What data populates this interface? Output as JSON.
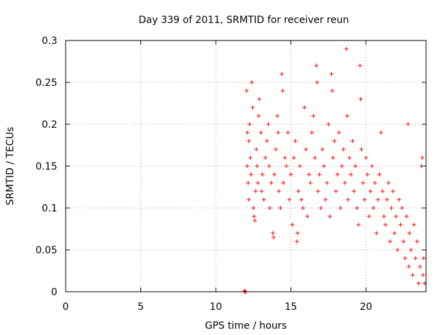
{
  "chart_data": {
    "type": "scatter",
    "title": "Day 339 of 2011, SRMTID for receiver reun",
    "xlabel": "GPS time / hours",
    "ylabel": "SRMTID / TECUs",
    "xlim": [
      0,
      24
    ],
    "ylim": [
      0,
      0.3
    ],
    "xticks": [
      0,
      5,
      10,
      15,
      20
    ],
    "xtick_labels": [
      "0",
      "5",
      "10",
      "15",
      "20"
    ],
    "yticks": [
      0,
      0.05,
      0.1,
      0.15,
      0.2,
      0.25,
      0.3
    ],
    "ytick_labels": [
      "0",
      "0.05",
      "0.1",
      "0.15",
      "0.2",
      "0.25",
      "0.3"
    ],
    "grid": true,
    "marker": "+",
    "color": "#ff0000",
    "series": [
      {
        "name": "SRMTID",
        "points": [
          [
            11.9,
            0.001
          ],
          [
            11.95,
            0.0
          ],
          [
            12.0,
            0.0
          ],
          [
            12.05,
            0.24
          ],
          [
            12.1,
            0.19
          ],
          [
            12.1,
            0.15
          ],
          [
            12.15,
            0.13
          ],
          [
            12.2,
            0.11
          ],
          [
            12.2,
            0.18
          ],
          [
            12.25,
            0.2
          ],
          [
            12.3,
            0.16
          ],
          [
            12.35,
            0.14
          ],
          [
            12.4,
            0.25
          ],
          [
            12.45,
            0.22
          ],
          [
            12.5,
            0.1
          ],
          [
            12.55,
            0.09
          ],
          [
            12.6,
            0.085
          ],
          [
            12.65,
            0.12
          ],
          [
            12.7,
            0.17
          ],
          [
            12.75,
            0.15
          ],
          [
            12.8,
            0.13
          ],
          [
            12.85,
            0.21
          ],
          [
            12.9,
            0.23
          ],
          [
            13.0,
            0.19
          ],
          [
            13.05,
            0.12
          ],
          [
            13.1,
            0.14
          ],
          [
            13.2,
            0.11
          ],
          [
            13.3,
            0.16
          ],
          [
            13.4,
            0.18
          ],
          [
            13.5,
            0.2
          ],
          [
            13.55,
            0.15
          ],
          [
            13.6,
            0.1
          ],
          [
            13.7,
            0.13
          ],
          [
            13.8,
            0.07
          ],
          [
            13.85,
            0.065
          ],
          [
            13.9,
            0.14
          ],
          [
            14.0,
            0.17
          ],
          [
            14.1,
            0.21
          ],
          [
            14.15,
            0.19
          ],
          [
            14.2,
            0.12
          ],
          [
            14.3,
            0.1
          ],
          [
            14.4,
            0.26
          ],
          [
            14.45,
            0.24
          ],
          [
            14.5,
            0.13
          ],
          [
            14.6,
            0.16
          ],
          [
            14.7,
            0.15
          ],
          [
            14.8,
            0.19
          ],
          [
            14.9,
            0.11
          ],
          [
            15.0,
            0.14
          ],
          [
            15.1,
            0.08
          ],
          [
            15.2,
            0.16
          ],
          [
            15.3,
            0.18
          ],
          [
            15.4,
            0.06
          ],
          [
            15.45,
            0.07
          ],
          [
            15.5,
            0.12
          ],
          [
            15.6,
            0.15
          ],
          [
            15.7,
            0.11
          ],
          [
            15.8,
            0.1
          ],
          [
            15.9,
            0.22
          ],
          [
            16.0,
            0.17
          ],
          [
            16.1,
            0.09
          ],
          [
            16.2,
            0.14
          ],
          [
            16.3,
            0.13
          ],
          [
            16.4,
            0.19
          ],
          [
            16.5,
            0.21
          ],
          [
            16.6,
            0.16
          ],
          [
            16.7,
            0.27
          ],
          [
            16.75,
            0.25
          ],
          [
            16.8,
            0.12
          ],
          [
            16.9,
            0.14
          ],
          [
            17.0,
            0.1
          ],
          [
            17.1,
            0.17
          ],
          [
            17.2,
            0.15
          ],
          [
            17.3,
            0.11
          ],
          [
            17.4,
            0.13
          ],
          [
            17.5,
            0.2
          ],
          [
            17.6,
            0.09
          ],
          [
            17.7,
            0.26
          ],
          [
            17.75,
            0.24
          ],
          [
            17.8,
            0.16
          ],
          [
            17.9,
            0.18
          ],
          [
            18.0,
            0.12
          ],
          [
            18.1,
            0.14
          ],
          [
            18.2,
            0.19
          ],
          [
            18.3,
            0.1
          ],
          [
            18.4,
            0.15
          ],
          [
            18.5,
            0.17
          ],
          [
            18.6,
            0.13
          ],
          [
            18.7,
            0.29
          ],
          [
            18.75,
            0.21
          ],
          [
            18.8,
            0.11
          ],
          [
            18.9,
            0.16
          ],
          [
            19.0,
            0.14
          ],
          [
            19.1,
            0.18
          ],
          [
            19.2,
            0.12
          ],
          [
            19.3,
            0.15
          ],
          [
            19.4,
            0.1
          ],
          [
            19.5,
            0.08
          ],
          [
            19.6,
            0.27
          ],
          [
            19.65,
            0.23
          ],
          [
            19.7,
            0.17
          ],
          [
            19.8,
            0.13
          ],
          [
            19.9,
            0.11
          ],
          [
            20.0,
            0.16
          ],
          [
            20.1,
            0.14
          ],
          [
            20.2,
            0.09
          ],
          [
            20.3,
            0.12
          ],
          [
            20.4,
            0.15
          ],
          [
            20.5,
            0.1
          ],
          [
            20.6,
            0.13
          ],
          [
            20.7,
            0.07
          ],
          [
            20.8,
            0.11
          ],
          [
            20.9,
            0.14
          ],
          [
            21.0,
            0.19
          ],
          [
            21.1,
            0.12
          ],
          [
            21.2,
            0.09
          ],
          [
            21.3,
            0.08
          ],
          [
            21.4,
            0.11
          ],
          [
            21.5,
            0.13
          ],
          [
            21.6,
            0.06
          ],
          [
            21.7,
            0.1
          ],
          [
            21.8,
            0.12
          ],
          [
            21.9,
            0.07
          ],
          [
            22.0,
            0.09
          ],
          [
            22.1,
            0.05
          ],
          [
            22.2,
            0.11
          ],
          [
            22.3,
            0.08
          ],
          [
            22.4,
            0.1
          ],
          [
            22.5,
            0.06
          ],
          [
            22.6,
            0.04
          ],
          [
            22.7,
            0.09
          ],
          [
            22.8,
            0.2
          ],
          [
            22.85,
            0.03
          ],
          [
            22.9,
            0.07
          ],
          [
            23.0,
            0.05
          ],
          [
            23.1,
            0.02
          ],
          [
            23.2,
            0.08
          ],
          [
            23.3,
            0.04
          ],
          [
            23.4,
            0.06
          ],
          [
            23.5,
            0.01
          ],
          [
            23.6,
            0.03
          ],
          [
            23.7,
            0.15
          ],
          [
            23.75,
            0.16
          ],
          [
            23.8,
            0.02
          ],
          [
            23.85,
            0.04
          ],
          [
            23.9,
            0.01
          ]
        ]
      }
    ]
  }
}
